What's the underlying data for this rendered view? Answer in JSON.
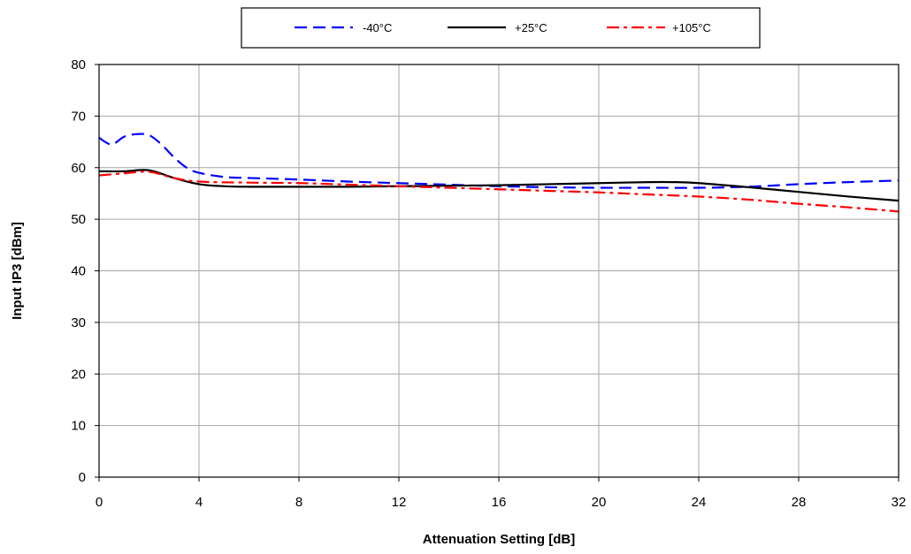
{
  "chart_data": {
    "type": "line",
    "title": "",
    "xlabel": "Attenuation Setting [dB]",
    "ylabel": "Input IP3 [dBm]",
    "xlim": [
      0,
      32
    ],
    "ylim": [
      0,
      80
    ],
    "xticks": [
      0,
      4,
      8,
      12,
      16,
      20,
      24,
      28,
      32
    ],
    "yticks": [
      0,
      10,
      20,
      30,
      40,
      50,
      60,
      70,
      80
    ],
    "grid": true,
    "legend_position": "top-center",
    "series": [
      {
        "name": "-40°C",
        "color": "#0000ff",
        "style": "dashed",
        "x": [
          0,
          0.5,
          1,
          1.5,
          2,
          2.5,
          3,
          3.5,
          4,
          5,
          6,
          8,
          10,
          12,
          14,
          16,
          18,
          20,
          22,
          24,
          26,
          28,
          30,
          32
        ],
        "y": [
          65.8,
          64.5,
          66.0,
          66.5,
          66.3,
          64.5,
          62.0,
          60.0,
          59.0,
          58.2,
          58.0,
          57.7,
          57.3,
          57.0,
          56.7,
          56.4,
          56.2,
          56.1,
          56.1,
          56.1,
          56.3,
          56.8,
          57.2,
          57.5
        ]
      },
      {
        "name": "+25°C",
        "color": "#000000",
        "style": "solid",
        "x": [
          0,
          1,
          2,
          3,
          4,
          5,
          6,
          8,
          10,
          12,
          14,
          16,
          18,
          20,
          22,
          23,
          24,
          26,
          28,
          30,
          32
        ],
        "y": [
          59.3,
          59.3,
          59.5,
          58.0,
          56.8,
          56.4,
          56.3,
          56.3,
          56.3,
          56.4,
          56.5,
          56.6,
          56.8,
          57.0,
          57.2,
          57.2,
          57.0,
          56.2,
          55.3,
          54.4,
          53.6
        ]
      },
      {
        "name": "+105°C",
        "color": "#ff0000",
        "style": "dash-dot",
        "x": [
          0,
          1,
          2,
          3,
          4,
          6,
          8,
          10,
          12,
          14,
          16,
          18,
          20,
          22,
          24,
          26,
          28,
          30,
          32
        ],
        "y": [
          58.5,
          58.9,
          59.2,
          58.0,
          57.3,
          57.1,
          57.0,
          56.7,
          56.4,
          56.1,
          55.8,
          55.5,
          55.2,
          54.8,
          54.4,
          53.8,
          53.0,
          52.3,
          51.5
        ]
      }
    ]
  }
}
